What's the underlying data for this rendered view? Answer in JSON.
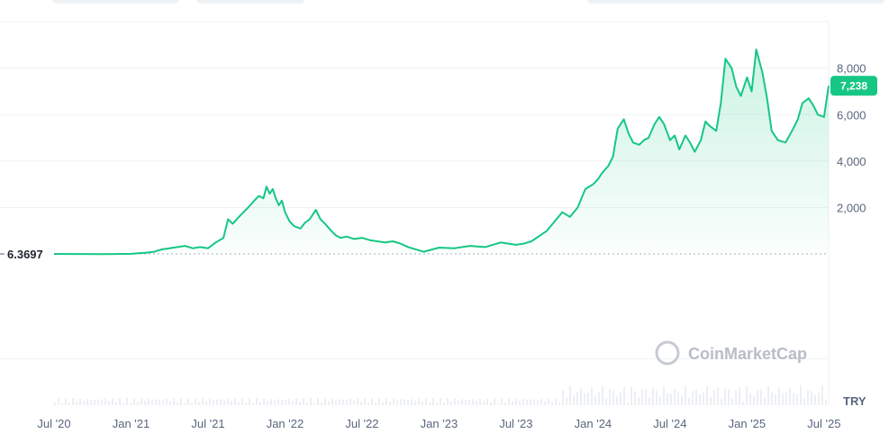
{
  "chart_data": {
    "type": "area",
    "currency": "TRY",
    "start_value_label": "6.3697",
    "current_price_label": "7,238",
    "watermark": "CoinMarketCap",
    "x_tick_labels": [
      "Jul '20",
      "Jan '21",
      "Jul '21",
      "Jan '22",
      "Jul '22",
      "Jan '23",
      "Jul '23",
      "Jan '24",
      "Jul '24",
      "Jan '25",
      "Jul '25"
    ],
    "y_tick_labels": [
      "2,000",
      "4,000",
      "6,000",
      "8,000"
    ],
    "y_ticks": [
      2000,
      4000,
      6000,
      8000
    ],
    "ylim": [
      -6500,
      10000
    ],
    "grid": true,
    "legend": "none",
    "colors": {
      "line": "#16c784",
      "badge": "#16c784",
      "grid": "#eff2f5",
      "baseline": "#a6b0c3",
      "volume": "#eceff3"
    },
    "series": [
      {
        "x": [
          2020.5,
          2020.6,
          2020.7,
          2020.8,
          2020.9,
          2021.0,
          2021.1,
          2021.15,
          2021.2,
          2021.25,
          2021.3,
          2021.35,
          2021.4,
          2021.45,
          2021.5,
          2021.55,
          2021.6,
          2021.63,
          2021.66,
          2021.7,
          2021.73,
          2021.76,
          2021.8,
          2021.83,
          2021.86,
          2021.88,
          2021.9,
          2021.92,
          2021.94,
          2021.96,
          2021.98,
          2022.0,
          2022.03,
          2022.06,
          2022.1,
          2022.13,
          2022.16,
          2022.2,
          2022.23,
          2022.26,
          2022.3,
          2022.33,
          2022.36,
          2022.4,
          2022.45,
          2022.5,
          2022.55,
          2022.6,
          2022.65,
          2022.7,
          2022.75,
          2022.8,
          2022.9,
          2023.0,
          2023.1,
          2023.2,
          2023.3,
          2023.4,
          2023.5,
          2023.55,
          2023.6,
          2023.7,
          2023.8,
          2023.85,
          2023.9,
          2023.95,
          2024.0,
          2024.03,
          2024.06,
          2024.1,
          2024.13,
          2024.16,
          2024.2,
          2024.23,
          2024.26,
          2024.3,
          2024.33,
          2024.36,
          2024.4,
          2024.43,
          2024.46,
          2024.5,
          2024.53,
          2024.56,
          2024.6,
          2024.63,
          2024.66,
          2024.7,
          2024.73,
          2024.76,
          2024.8,
          2024.83,
          2024.86,
          2024.9,
          2024.93,
          2024.96,
          2025.0,
          2025.03,
          2025.06,
          2025.1,
          2025.13,
          2025.16,
          2025.2,
          2025.25,
          2025.3,
          2025.33,
          2025.36,
          2025.4,
          2025.43,
          2025.46,
          2025.5,
          2025.53
        ],
        "y": [
          6,
          4,
          2,
          0,
          5,
          10,
          60,
          100,
          200,
          250,
          300,
          350,
          250,
          300,
          250,
          500,
          700,
          1500,
          1300,
          1600,
          1800,
          2000,
          2300,
          2500,
          2400,
          2900,
          2600,
          2800,
          2400,
          2100,
          2300,
          1800,
          1400,
          1200,
          1100,
          1350,
          1500,
          1900,
          1500,
          1300,
          1000,
          800,
          700,
          750,
          650,
          700,
          600,
          550,
          500,
          550,
          450,
          300,
          100,
          280,
          250,
          350,
          300,
          500,
          400,
          450,
          550,
          1000,
          1800,
          1600,
          2000,
          2800,
          3000,
          3200,
          3500,
          3800,
          4200,
          5400,
          5800,
          5200,
          4800,
          4700,
          4900,
          5000,
          5600,
          5900,
          5600,
          4900,
          5100,
          4500,
          5100,
          4800,
          4400,
          4900,
          5700,
          5500,
          5300,
          6500,
          8400,
          8000,
          7200,
          6800,
          7600,
          7000,
          8800,
          7800,
          6700,
          5300,
          4900,
          4800,
          5400,
          5800,
          6500,
          6700,
          6400,
          6000,
          5900,
          7238
        ]
      }
    ]
  }
}
